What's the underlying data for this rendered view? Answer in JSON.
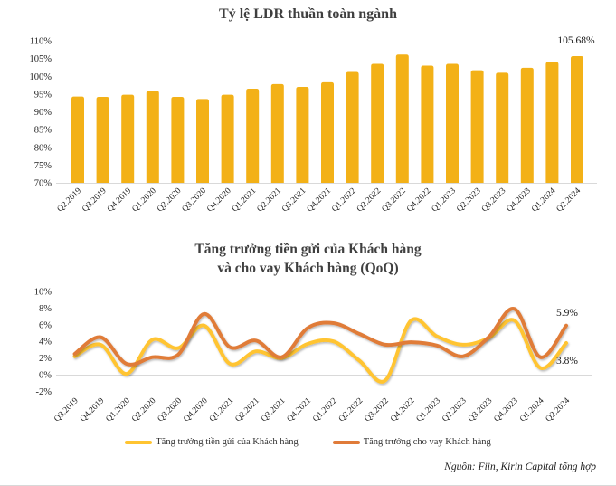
{
  "page": {
    "source_note": "Nguồn: Fiin, Kirin Capital tổng hợp"
  },
  "chart_data": [
    {
      "type": "bar",
      "title": "Tỷ lệ LDR thuần toàn ngành",
      "categories": [
        "Q2.2019",
        "Q3.2019",
        "Q4.2019",
        "Q1.2020",
        "Q2.2020",
        "Q3.2020",
        "Q4.2020",
        "Q1.2021",
        "Q2.2021",
        "Q3.2021",
        "Q4.2021",
        "Q1.2022",
        "Q2.2022",
        "Q3.2022",
        "Q4.2022",
        "Q1.2023",
        "Q2.2023",
        "Q3.2023",
        "Q4.2023",
        "Q1.2024",
        "Q2.2024"
      ],
      "values": [
        94.3,
        94.2,
        94.8,
        95.9,
        94.2,
        93.6,
        94.8,
        96.5,
        97.8,
        97.0,
        98.3,
        101.2,
        103.5,
        106.1,
        103.0,
        103.5,
        101.7,
        101.0,
        102.4,
        104.0,
        105.68
      ],
      "unit": "%",
      "ylim": [
        70,
        110
      ],
      "yticks": [
        {
          "v": 110,
          "label": "110%"
        },
        {
          "v": 105,
          "label": "105%"
        },
        {
          "v": 100,
          "label": "100%"
        },
        {
          "v": 95,
          "label": "95%"
        },
        {
          "v": 90,
          "label": "90%"
        },
        {
          "v": 85,
          "label": "85%"
        },
        {
          "v": 80,
          "label": "80%"
        },
        {
          "v": 75,
          "label": "75%"
        },
        {
          "v": 70,
          "label": "70%"
        }
      ],
      "grid": false,
      "bar_color": "#F3B117",
      "last_value_label": "105.68%",
      "legend": null
    },
    {
      "type": "line",
      "title_line1": "Tăng trưởng tiền gửi của Khách hàng",
      "title_line2": "và cho vay Khách hàng (QoQ)",
      "categories": [
        "Q3.2019",
        "Q4.2019",
        "Q1.2020",
        "Q2.2020",
        "Q3.2020",
        "Q4.2020",
        "Q1.2021",
        "Q2.2021",
        "Q3.2021",
        "Q4.2021",
        "Q1.2022",
        "Q2.2022",
        "Q3.2022",
        "Q4.2022",
        "Q1.2023",
        "Q2.2023",
        "Q3.2023",
        "Q4.2023",
        "Q1.2024",
        "Q2.2024"
      ],
      "series": [
        {
          "name": "Tăng trưởng tiền gửi của Khách hàng",
          "color": "#FFC431",
          "values": [
            2.2,
            3.6,
            0.1,
            4.2,
            3.2,
            5.9,
            1.3,
            2.8,
            2.0,
            3.7,
            4.0,
            1.7,
            -0.7,
            6.5,
            4.6,
            3.6,
            4.4,
            6.5,
            0.8,
            3.8
          ],
          "end_label": "3.8%"
        },
        {
          "name": "Tăng trưởng cho vay Khách hàng",
          "color": "#E07B39",
          "values": [
            2.5,
            4.5,
            1.3,
            2.1,
            2.4,
            7.3,
            3.3,
            4.1,
            2.1,
            5.6,
            6.2,
            4.9,
            3.6,
            3.9,
            3.5,
            2.2,
            4.5,
            7.9,
            2.1,
            5.9
          ],
          "end_label": "5.9%"
        }
      ],
      "unit": "%",
      "ylim": [
        -2,
        10
      ],
      "yticks": [
        {
          "v": 10,
          "label": "10%"
        },
        {
          "v": 8,
          "label": "8%"
        },
        {
          "v": 6,
          "label": "6%"
        },
        {
          "v": 4,
          "label": "4%"
        },
        {
          "v": 2,
          "label": "2%"
        },
        {
          "v": 0,
          "label": "0%"
        },
        {
          "v": -2,
          "label": "-2%"
        }
      ],
      "grid": "zero-line-only",
      "smooth": true,
      "legend_position": "bottom"
    }
  ]
}
